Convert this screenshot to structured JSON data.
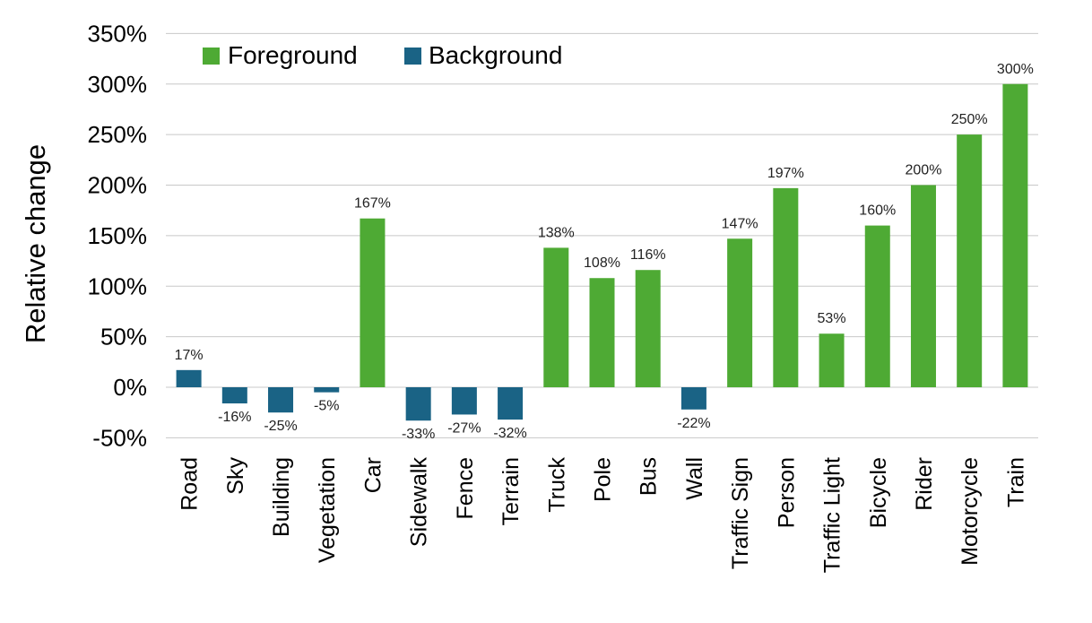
{
  "chart_data": {
    "type": "bar",
    "title": "",
    "xlabel": "",
    "ylabel": "Relative change",
    "ylim": [
      -50,
      350
    ],
    "yticks": [
      -50,
      0,
      50,
      100,
      150,
      200,
      250,
      300,
      350
    ],
    "ytick_labels": [
      "-50%",
      "0%",
      "50%",
      "100%",
      "150%",
      "200%",
      "250%",
      "300%",
      "350%"
    ],
    "grid": true,
    "legend_position": "top-left",
    "legend": [
      {
        "name": "Foreground",
        "color": "#4eaa34"
      },
      {
        "name": "Background",
        "color": "#1a6385"
      }
    ],
    "categories": [
      "Road",
      "Sky",
      "Building",
      "Vegetation",
      "Car",
      "Sidewalk",
      "Fence",
      "Terrain",
      "Truck",
      "Pole",
      "Bus",
      "Wall",
      "Traffic Sign",
      "Person",
      "Traffic Light",
      "Bicycle",
      "Rider",
      "Motorcycle",
      "Train"
    ],
    "values": [
      17,
      -16,
      -25,
      -5,
      167,
      -33,
      -27,
      -32,
      138,
      108,
      116,
      -22,
      147,
      197,
      53,
      160,
      200,
      250,
      300
    ],
    "value_labels": [
      "17%",
      "-16%",
      "-25%",
      "-5%",
      "167%",
      "-33%",
      "-27%",
      "-32%",
      "138%",
      "108%",
      "116%",
      "-22%",
      "147%",
      "197%",
      "53%",
      "160%",
      "200%",
      "250%",
      "300%"
    ],
    "groups": [
      "Background",
      "Background",
      "Background",
      "Background",
      "Foreground",
      "Background",
      "Background",
      "Background",
      "Foreground",
      "Foreground",
      "Foreground",
      "Background",
      "Foreground",
      "Foreground",
      "Foreground",
      "Foreground",
      "Foreground",
      "Foreground",
      "Foreground"
    ]
  }
}
